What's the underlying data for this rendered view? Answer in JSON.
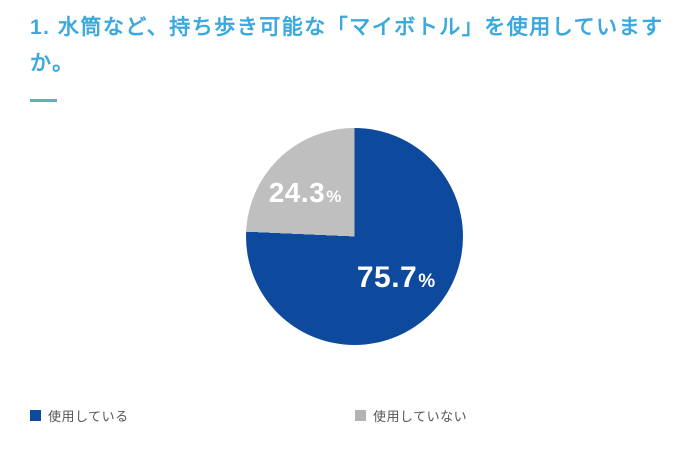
{
  "page": {
    "title": "1. 水筒など、持ち歩き可能な「マイボトル」を使用していますか。"
  },
  "chart_data": {
    "type": "pie",
    "title": "1. 水筒など、持ち歩き可能な「マイボトル」を使用していますか。",
    "categories": [
      "使用している",
      "使用していない"
    ],
    "values": [
      75.7,
      24.3
    ],
    "labels": [
      {
        "number": "75.7",
        "unit": "%"
      },
      {
        "number": "24.3",
        "unit": "%"
      }
    ],
    "colors": [
      "#0d4a9e",
      "#bfbfbf"
    ],
    "label_color": "#ffffff",
    "start_angle_deg": 0,
    "direction": "clockwise",
    "legend_position": "bottom"
  },
  "legend": {
    "items": [
      {
        "label": "使用している",
        "color": "#0d4a9e"
      },
      {
        "label": "使用していない",
        "color": "#b3b3b3"
      }
    ]
  },
  "theme": {
    "title_color": "#3ba9de",
    "underline_color": "#56b3c7",
    "legend_text_color": "#555555",
    "background": "#ffffff"
  }
}
